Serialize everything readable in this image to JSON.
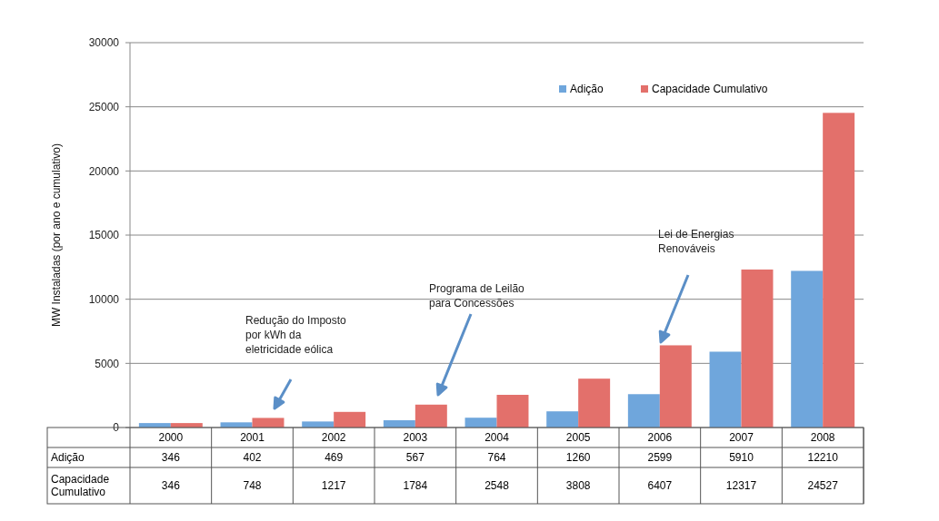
{
  "chart_data": {
    "type": "bar",
    "ylabel": "MW Instaladas (por ano e cumulativo)",
    "categories": [
      "2000",
      "2001",
      "2002",
      "2003",
      "2004",
      "2005",
      "2006",
      "2007",
      "2008"
    ],
    "series": [
      {
        "name": "Adição",
        "color": "#6fa6dc",
        "values": [
          346,
          402,
          469,
          567,
          764,
          1260,
          2599,
          5910,
          12210
        ]
      },
      {
        "name": "Capacidade Cumulativo",
        "color": "#e3706b",
        "values": [
          346,
          748,
          1217,
          1784,
          2548,
          3808,
          6407,
          12317,
          24527
        ]
      }
    ],
    "ylim": [
      0,
      30000
    ],
    "yticks": [
      0,
      5000,
      10000,
      15000,
      20000,
      25000,
      30000
    ],
    "grid": "y",
    "legend": "top right",
    "data_labels": true,
    "annotations": [
      "Redução do Imposto\npor kWh da\neletricidade eólica",
      "Programa de Leilão\npara Concessões",
      "Lei de Energias\nRenováveis"
    ]
  }
}
